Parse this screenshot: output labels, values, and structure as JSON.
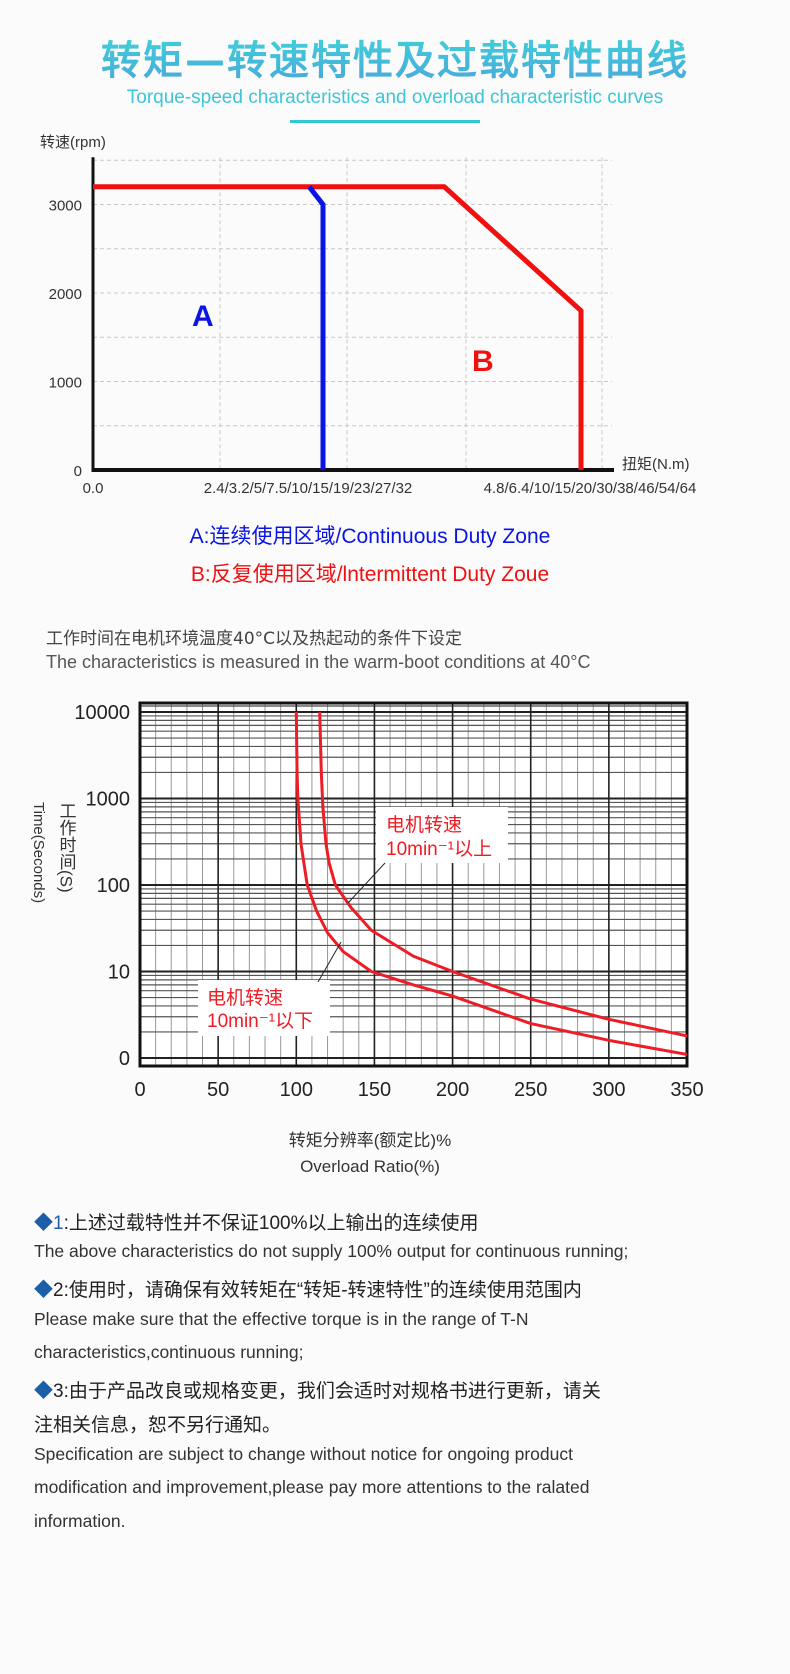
{
  "header": {
    "title": "转矩—转速特性及过载特性曲线",
    "subtitle": "Torque-speed characteristics and overload characteristic curves",
    "accent_color": "#3cc6d6"
  },
  "legend": {
    "a": "A:连续使用区域/Continuous Duty Zone",
    "b": "B:反复使用区域/lntermittent Duty Zoue"
  },
  "condition_note": {
    "cn": "工作时间在电机环境温度40°C以及热起动的条件下设定",
    "en": "The characteristics is measured in the warm-boot conditions at 40°C"
  },
  "chart_data": [
    {
      "type": "line",
      "ylabel": "转速(rpm)",
      "xlabel": "扭矩(N.m)",
      "x_tick_labels": [
        "0.0",
        "2.4/3.2/5/7.5/10/15/19/23/27/32",
        "4.8/6.4/10/15/20/30/38/46/54/64"
      ],
      "y_ticks": [
        0,
        1000,
        2000,
        3000
      ],
      "ylim": [
        0,
        3500
      ],
      "grid": true,
      "region_labels": [
        {
          "text": "A",
          "color": "#0a14e6"
        },
        {
          "text": "B",
          "color": "#f01010"
        }
      ],
      "series": [
        {
          "name": "A",
          "color": "#0a14e6",
          "points": [
            [
              0.94,
              3200
            ],
            [
              1.0,
              3000
            ],
            [
              1.0,
              0
            ]
          ]
        },
        {
          "name": "B",
          "color": "#f01010",
          "points": [
            [
              0,
              3200
            ],
            [
              1.47,
              3200
            ],
            [
              2.0,
              1800
            ],
            [
              2.0,
              0
            ]
          ]
        }
      ]
    },
    {
      "type": "line",
      "ylabel_cn": "工作时间(S)",
      "ylabel_en": "Time(Seconds)",
      "xlabel_cn": "转矩分辨率(额定比)%",
      "xlabel_en": "Overload Ratio(%)",
      "x_ticks": [
        0,
        50,
        100,
        150,
        200,
        250,
        300,
        350
      ],
      "xlim": [
        0,
        350
      ],
      "y_scale": "log",
      "y_ticks": [
        {
          "value": 1,
          "label": "0"
        },
        {
          "value": 10,
          "label": "10"
        },
        {
          "value": 100,
          "label": "100"
        },
        {
          "value": 1000,
          "label": "1000"
        },
        {
          "value": 10000,
          "label": "10000"
        }
      ],
      "grid": true,
      "series": [
        {
          "name": "电机转速 10min⁻¹以上",
          "line1": "电机转速",
          "line2": "10min⁻¹以上",
          "color": "#ee1c24",
          "points": [
            [
              115,
              10000
            ],
            [
              116,
              2000
            ],
            [
              117,
              800
            ],
            [
              119,
              300
            ],
            [
              121,
              180
            ],
            [
              125,
              100
            ],
            [
              135,
              55
            ],
            [
              148,
              30
            ],
            [
              175,
              15
            ],
            [
              200,
              10
            ],
            [
              250,
              4.8
            ],
            [
              300,
              2.8
            ],
            [
              350,
              1.8
            ]
          ]
        },
        {
          "name": "电机转速 10min⁻¹以下",
          "line1": "电机转速",
          "line2": "10min⁻¹以下",
          "color": "#ee1c24",
          "points": [
            [
              100,
              10000
            ],
            [
              100.5,
              2000
            ],
            [
              101,
              1000
            ],
            [
              103,
              300
            ],
            [
              107,
              100
            ],
            [
              113,
              50
            ],
            [
              120,
              28
            ],
            [
              130,
              17
            ],
            [
              148,
              10
            ],
            [
              175,
              7
            ],
            [
              200,
              5.2
            ],
            [
              250,
              2.5
            ],
            [
              300,
              1.6
            ],
            [
              350,
              1.1
            ]
          ]
        }
      ]
    }
  ],
  "notes": [
    {
      "marker": "◆",
      "num": "1",
      "cn": ":上述过载特性并不保证100%以上输出的连续使用",
      "en": [
        "The above characteristics do not supply 100% output for continuous running;"
      ]
    },
    {
      "marker": "◆",
      "num": "2",
      "cn": ":使用时，请确保有效转矩在“转矩-转速特性”的连续使用范围内",
      "en": [
        "Please make sure that the effective torque is in the range of T-N",
        "characteristics,continuous running;"
      ]
    },
    {
      "marker": "◆",
      "num": "3",
      "cn": ":由于产品改良或规格变更，我们会适时对规格书进行更新，请关",
      "cn2": "注相关信息，恕不另行通知。",
      "en": [
        "Specification are subject to change without notice for ongoing product",
        "modification and improvement,please pay more attentions to the ralated",
        "information."
      ]
    }
  ]
}
